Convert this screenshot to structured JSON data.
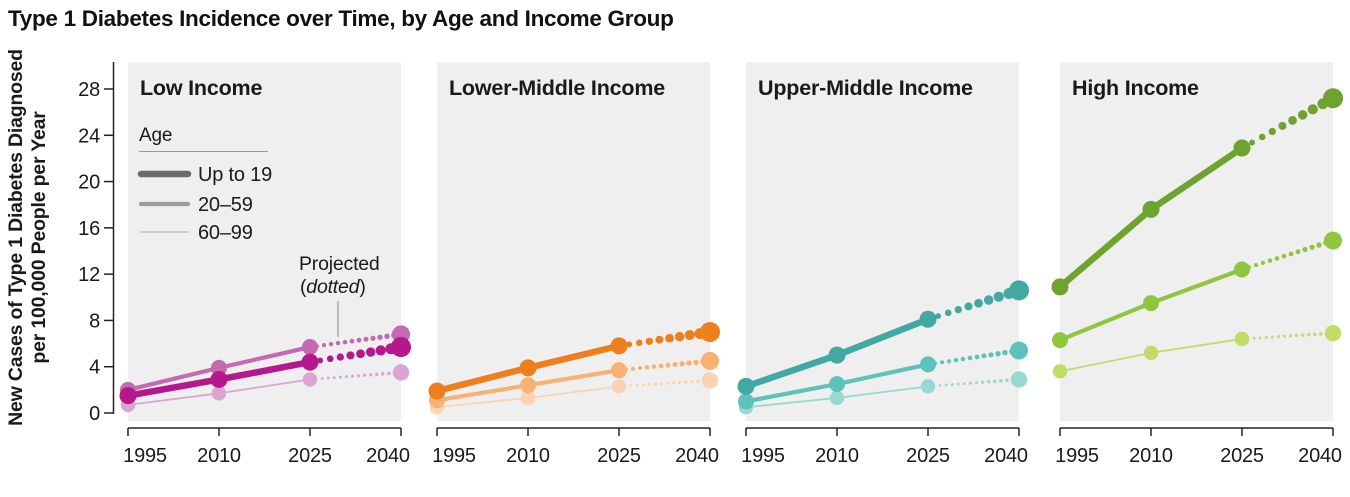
{
  "title": "Type 1 Diabetes Incidence over Time, by Age and Income Group",
  "legend": {
    "age_title": "Age",
    "items": [
      {
        "label": "Up to 19",
        "swatch_color": "#6a6a6a",
        "width_class": "thick"
      },
      {
        "label": "20–59",
        "swatch_color": "#9d9d9d",
        "width_class": "medium"
      },
      {
        "label": "60–99",
        "swatch_color": "#c6c6c6",
        "width_class": "thin"
      }
    ],
    "projected": {
      "line1": "Projected",
      "pre": "(",
      "word": "dotted",
      "post": ")",
      "color": "#8c8c8c"
    }
  },
  "chart_data": {
    "type": "line",
    "title": "Type 1 Diabetes Incidence over Time, by Age and Income Group",
    "ylabel_line1": "New Cases of Type 1 Diabetes Diagnosed",
    "ylabel_line2": "per 100,000 People per Year",
    "x": [
      1995,
      2010,
      2025,
      2040
    ],
    "y_ticks": [
      0,
      4,
      8,
      12,
      16,
      20,
      24,
      28
    ],
    "ylim": [
      0,
      28
    ],
    "projected_from_year": 2025,
    "legend_position": "first-panel-top-left",
    "grid": false,
    "panel_bg": "#f0efef",
    "panels": [
      {
        "title": "Low Income",
        "title_color": "#a81c8c",
        "series": [
          {
            "name": "Up to 19",
            "width_class": "thick",
            "color": "#b5188c",
            "values": [
              1.5,
              2.9,
              4.4,
              5.7
            ]
          },
          {
            "name": "20–59",
            "width_class": "medium",
            "color": "#c569b0",
            "values": [
              2.0,
              3.9,
              5.7,
              6.8
            ]
          },
          {
            "name": "60–99",
            "width_class": "thin",
            "color": "#d9a6d3",
            "values": [
              0.7,
              1.7,
              2.9,
              3.5
            ]
          }
        ]
      },
      {
        "title": "Lower-Middle Income",
        "title_color": "#e87e1e",
        "series": [
          {
            "name": "Up to 19",
            "width_class": "thick",
            "color": "#ee7f1d",
            "values": [
              1.9,
              3.9,
              5.8,
              7.0
            ]
          },
          {
            "name": "20–59",
            "width_class": "medium",
            "color": "#f6b173",
            "values": [
              1.1,
              2.4,
              3.7,
              4.5
            ]
          },
          {
            "name": "60–99",
            "width_class": "thin",
            "color": "#fad2b4",
            "values": [
              0.5,
              1.3,
              2.3,
              2.8
            ]
          }
        ]
      },
      {
        "title": "Upper-Middle Income",
        "title_color": "#3ea8a2",
        "series": [
          {
            "name": "Up to 19",
            "width_class": "thick",
            "color": "#41a8a2",
            "values": [
              2.3,
              5.0,
              8.1,
              10.6
            ]
          },
          {
            "name": "20–59",
            "width_class": "medium",
            "color": "#5fc2ba",
            "values": [
              1.0,
              2.5,
              4.2,
              5.4
            ]
          },
          {
            "name": "60–99",
            "width_class": "thin",
            "color": "#98d8d1",
            "values": [
              0.5,
              1.3,
              2.3,
              2.9
            ]
          }
        ]
      },
      {
        "title": "High Income",
        "title_color": "#6ba32f",
        "series": [
          {
            "name": "Up to 19",
            "width_class": "thick",
            "color": "#6da32e",
            "values": [
              10.9,
              17.6,
              22.9,
              27.2
            ]
          },
          {
            "name": "20–59",
            "width_class": "medium",
            "color": "#8ec63f",
            "values": [
              6.3,
              9.5,
              12.4,
              14.9
            ]
          },
          {
            "name": "60–99",
            "width_class": "thin",
            "color": "#c0dc66",
            "values": [
              3.6,
              5.2,
              6.4,
              6.9
            ]
          }
        ]
      }
    ]
  }
}
